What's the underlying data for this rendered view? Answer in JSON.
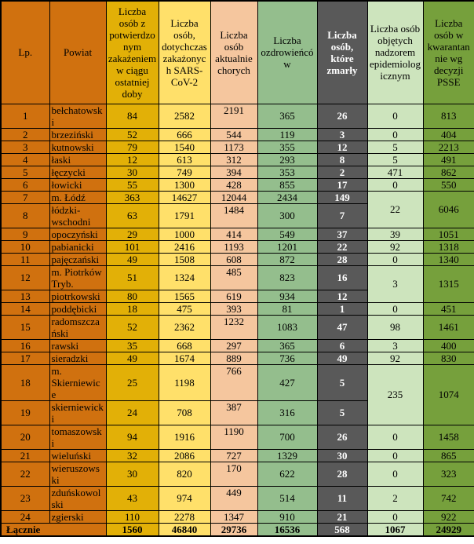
{
  "colors": {
    "orange": "#D0710F",
    "gold": "#E2B007",
    "light_yellow": "#FFE06A",
    "peach": "#F5C69E",
    "green": "#94BE8D",
    "dark_gray": "#595959",
    "pale_green": "#CDE4BD",
    "olive_green": "#76A03C",
    "deaths_text": "#FFFFFF",
    "border": "#000000"
  },
  "table": {
    "headers": [
      "Lp.",
      "Powiat",
      "Liczba osób z potwierdzonym zakażeniem w ciągu ostatniej doby",
      "Liczba osób, dotychczas zakażonych SARS-CoV-2",
      "Liczba osób aktualnie chorych",
      "Liczba ozdrowieńców",
      "Liczba osób, które zmarły",
      "Liczba osób objętych nadzorem epidemiologicznym",
      "Liczba osób w kwarantannie wg decyzji PSSE"
    ],
    "rows": [
      {
        "lp": "1",
        "powiat": "bełchatowski",
        "confirmed_24h": "84",
        "infected_total": "2582",
        "currently_ill": "2191",
        "recovered": "365",
        "deaths": "26",
        "surveillance": "0",
        "quarantine": "813"
      },
      {
        "lp": "2",
        "powiat": "brzeziński",
        "confirmed_24h": "52",
        "infected_total": "666",
        "currently_ill": "544",
        "recovered": "119",
        "deaths": "3",
        "surveillance": "0",
        "quarantine": "404"
      },
      {
        "lp": "3",
        "powiat": "kutnowski",
        "confirmed_24h": "79",
        "infected_total": "1540",
        "currently_ill": "1173",
        "recovered": "355",
        "deaths": "12",
        "surveillance": "5",
        "quarantine": "2213"
      },
      {
        "lp": "4",
        "powiat": "łaski",
        "confirmed_24h": "12",
        "infected_total": "613",
        "currently_ill": "312",
        "recovered": "293",
        "deaths": "8",
        "surveillance": "5",
        "quarantine": "491"
      },
      {
        "lp": "5",
        "powiat": "łęczycki",
        "confirmed_24h": "30",
        "infected_total": "749",
        "currently_ill": "394",
        "recovered": "353",
        "deaths": "2",
        "surveillance": "471",
        "quarantine": "862"
      },
      {
        "lp": "6",
        "powiat": "łowicki",
        "confirmed_24h": "55",
        "infected_total": "1300",
        "currently_ill": "428",
        "recovered": "855",
        "deaths": "17",
        "surveillance": "0",
        "quarantine": "550"
      },
      {
        "lp": "7",
        "powiat": "m. Łódź",
        "confirmed_24h": "363",
        "infected_total": "14627",
        "currently_ill": "12044",
        "recovered": "2434",
        "deaths": "149",
        "surveillance": "22",
        "quarantine": "6046",
        "tail_rowspan": 2
      },
      {
        "lp": "8",
        "powiat": "łódzki-wschodni",
        "confirmed_24h": "63",
        "infected_total": "1791",
        "currently_ill": "1484",
        "recovered": "300",
        "deaths": "7",
        "tail_merged": true
      },
      {
        "lp": "9",
        "powiat": "opoczyński",
        "confirmed_24h": "29",
        "infected_total": "1000",
        "currently_ill": "414",
        "recovered": "549",
        "deaths": "37",
        "surveillance": "39",
        "quarantine": "1051"
      },
      {
        "lp": "10",
        "powiat": "pabianicki",
        "confirmed_24h": "101",
        "infected_total": "2416",
        "currently_ill": "1193",
        "recovered": "1201",
        "deaths": "22",
        "surveillance": "92",
        "quarantine": "1318"
      },
      {
        "lp": "11",
        "powiat": "pajęczański",
        "confirmed_24h": "49",
        "infected_total": "1508",
        "currently_ill": "608",
        "recovered": "872",
        "deaths": "28",
        "surveillance": "0",
        "quarantine": "1340"
      },
      {
        "lp": "12",
        "powiat": "m. Piotrków Tryb.",
        "confirmed_24h": "51",
        "infected_total": "1324",
        "currently_ill": "485",
        "recovered": "823",
        "deaths": "16",
        "surveillance": "3",
        "quarantine": "1315",
        "tail_rowspan": 2
      },
      {
        "lp": "13",
        "powiat": "piotrkowski",
        "confirmed_24h": "80",
        "infected_total": "1565",
        "currently_ill": "619",
        "recovered": "934",
        "deaths": "12",
        "tail_merged": true
      },
      {
        "lp": "14",
        "powiat": "poddębicki",
        "confirmed_24h": "18",
        "infected_total": "475",
        "currently_ill": "393",
        "recovered": "81",
        "deaths": "1",
        "surveillance": "0",
        "quarantine": "451"
      },
      {
        "lp": "15",
        "powiat": "radomszczański",
        "confirmed_24h": "52",
        "infected_total": "2362",
        "currently_ill": "1232",
        "recovered": "1083",
        "deaths": "47",
        "surveillance": "98",
        "quarantine": "1461"
      },
      {
        "lp": "16",
        "powiat": "rawski",
        "confirmed_24h": "35",
        "infected_total": "668",
        "currently_ill": "297",
        "recovered": "365",
        "deaths": "6",
        "surveillance": "3",
        "quarantine": "400"
      },
      {
        "lp": "17",
        "powiat": "sieradzki",
        "confirmed_24h": "49",
        "infected_total": "1674",
        "currently_ill": "889",
        "recovered": "736",
        "deaths": "49",
        "surveillance": "92",
        "quarantine": "830"
      },
      {
        "lp": "18",
        "powiat": "m. Skierniewice",
        "confirmed_24h": "25",
        "infected_total": "1198",
        "currently_ill": "766",
        "recovered": "427",
        "deaths": "5",
        "surveillance": "235",
        "quarantine": "1074",
        "tail_rowspan": 2
      },
      {
        "lp": "19",
        "powiat": "skierniewicki",
        "confirmed_24h": "24",
        "infected_total": "708",
        "currently_ill": "387",
        "recovered": "316",
        "deaths": "5",
        "tail_merged": true
      },
      {
        "lp": "20",
        "powiat": "tomaszowski",
        "confirmed_24h": "94",
        "infected_total": "1916",
        "currently_ill": "1190",
        "recovered": "700",
        "deaths": "26",
        "surveillance": "0",
        "quarantine": "1458"
      },
      {
        "lp": "21",
        "powiat": "wieluński",
        "confirmed_24h": "32",
        "infected_total": "2086",
        "currently_ill": "727",
        "recovered": "1329",
        "deaths": "30",
        "surveillance": "0",
        "quarantine": "865"
      },
      {
        "lp": "22",
        "powiat": "wieruszowski",
        "confirmed_24h": "30",
        "infected_total": "820",
        "currently_ill": "170",
        "recovered": "622",
        "deaths": "28",
        "surveillance": "0",
        "quarantine": "323"
      },
      {
        "lp": "23",
        "powiat": "zduńskowolski",
        "confirmed_24h": "43",
        "infected_total": "974",
        "currently_ill": "449",
        "recovered": "514",
        "deaths": "11",
        "surveillance": "2",
        "quarantine": "742"
      },
      {
        "lp": "24",
        "powiat": "zgierski",
        "confirmed_24h": "110",
        "infected_total": "2278",
        "currently_ill": "1347",
        "recovered": "910",
        "deaths": "21",
        "surveillance": "0",
        "quarantine": "922"
      }
    ],
    "footer": {
      "label": "Łącznie",
      "confirmed_24h": "1560",
      "infected_total": "46840",
      "currently_ill": "29736",
      "recovered": "16536",
      "deaths": "568",
      "surveillance": "1067",
      "quarantine": "24929"
    }
  }
}
